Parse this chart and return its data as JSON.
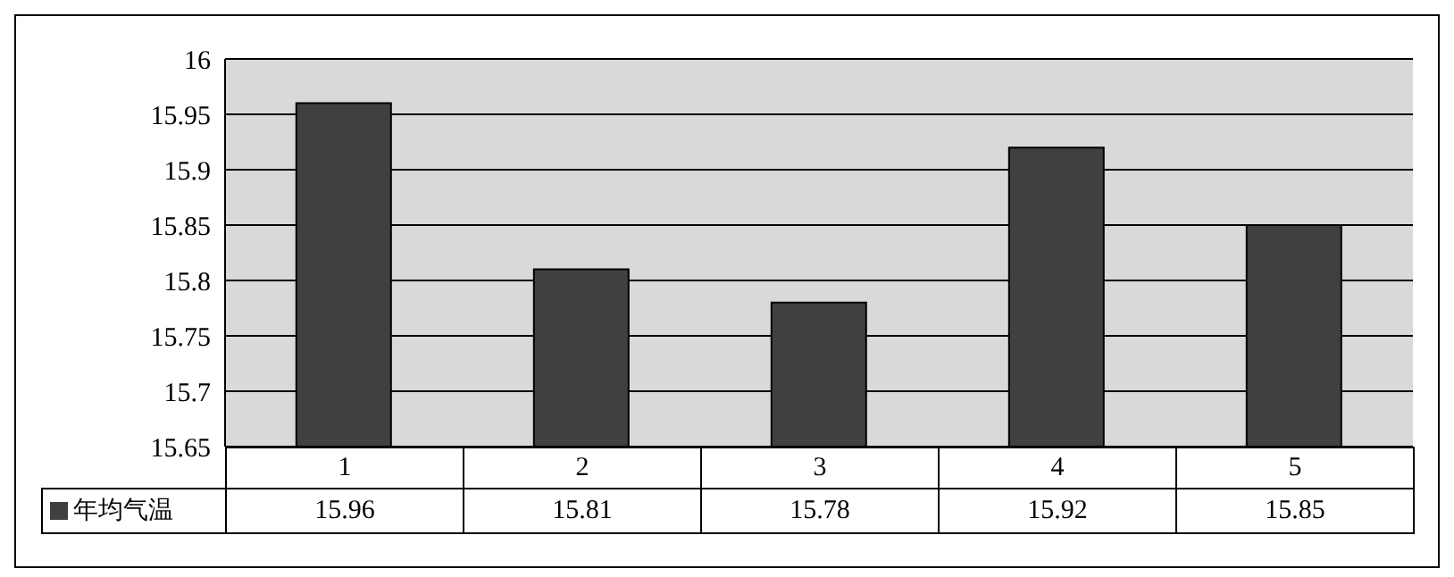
{
  "chart_data": {
    "type": "bar",
    "categories": [
      "1",
      "2",
      "3",
      "4",
      "5"
    ],
    "series": [
      {
        "name": "年均气温",
        "color": "#404040",
        "values": [
          15.96,
          15.81,
          15.78,
          15.92,
          15.85
        ]
      }
    ],
    "ylim": [
      15.65,
      16
    ],
    "yticks": [
      15.65,
      15.7,
      15.75,
      15.8,
      15.85,
      15.9,
      15.95,
      16
    ],
    "grid": "y",
    "legend": "bottom left",
    "data_labels": true
  }
}
